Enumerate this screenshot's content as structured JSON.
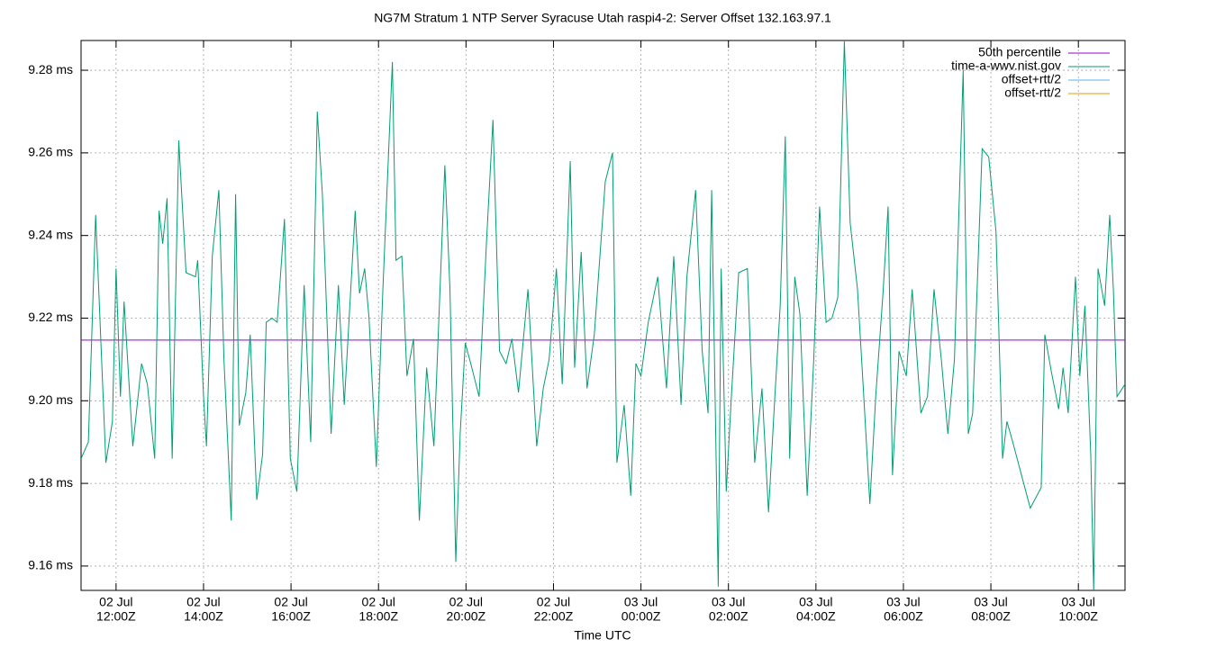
{
  "chart_data": {
    "type": "line",
    "title": "NG7M Stratum 1 NTP Server Syracuse Utah raspi4-2: Server Offset 132.163.97.1",
    "x_label": "Time UTC",
    "xlim": [
      "02 Jul 11:12Z",
      "03 Jul 11:04Z"
    ],
    "xticks": [
      {
        "value": "02 Jul 12:00Z",
        "label": [
          "02 Jul",
          "12:00Z"
        ]
      },
      {
        "value": "02 Jul 14:00Z",
        "label": [
          "02 Jul",
          "14:00Z"
        ]
      },
      {
        "value": "02 Jul 16:00Z",
        "label": [
          "02 Jul",
          "16:00Z"
        ]
      },
      {
        "value": "02 Jul 18:00Z",
        "label": [
          "02 Jul",
          "18:00Z"
        ]
      },
      {
        "value": "02 Jul 20:00Z",
        "label": [
          "02 Jul",
          "20:00Z"
        ]
      },
      {
        "value": "02 Jul 22:00Z",
        "label": [
          "02 Jul",
          "22:00Z"
        ]
      },
      {
        "value": "03 Jul 00:00Z",
        "label": [
          "03 Jul",
          "00:00Z"
        ]
      },
      {
        "value": "03 Jul 02:00Z",
        "label": [
          "03 Jul",
          "02:00Z"
        ]
      },
      {
        "value": "03 Jul 04:00Z",
        "label": [
          "03 Jul",
          "04:00Z"
        ]
      },
      {
        "value": "03 Jul 06:00Z",
        "label": [
          "03 Jul",
          "06:00Z"
        ]
      },
      {
        "value": "03 Jul 08:00Z",
        "label": [
          "03 Jul",
          "08:00Z"
        ]
      },
      {
        "value": "03 Jul 10:00Z",
        "label": [
          "03 Jul",
          "10:00Z"
        ]
      }
    ],
    "ylim": [
      9.1541,
      9.2872
    ],
    "yticks": [
      {
        "value": 9.16,
        "label": "9.16 ms"
      },
      {
        "value": 9.18,
        "label": "9.18 ms"
      },
      {
        "value": 9.2,
        "label": "9.20 ms"
      },
      {
        "value": 9.22,
        "label": "9.22 ms"
      },
      {
        "value": 9.24,
        "label": "9.24 ms"
      },
      {
        "value": 9.26,
        "label": "9.26 ms"
      },
      {
        "value": 9.28,
        "label": "9.28 ms"
      }
    ],
    "grid": true,
    "legend": "top-right",
    "x": [
      "02 Jul 11:12Z",
      "02 Jul 11:22Z",
      "02 Jul 11:32Z",
      "02 Jul 11:46Z",
      "02 Jul 11:55Z",
      "02 Jul 12:00Z",
      "02 Jul 12:06Z",
      "02 Jul 12:11Z",
      "02 Jul 12:23Z",
      "02 Jul 12:35Z",
      "02 Jul 12:43Z",
      "02 Jul 12:53Z",
      "02 Jul 12:59Z",
      "02 Jul 13:04Z",
      "02 Jul 13:10Z",
      "02 Jul 13:17Z",
      "02 Jul 13:26Z",
      "02 Jul 13:36Z",
      "02 Jul 13:49Z",
      "02 Jul 13:52Z",
      "02 Jul 14:00Z",
      "02 Jul 14:04Z",
      "02 Jul 14:12Z",
      "02 Jul 14:21Z",
      "02 Jul 14:28Z",
      "02 Jul 14:38Z",
      "02 Jul 14:44Z",
      "02 Jul 14:49Z",
      "02 Jul 14:58Z",
      "02 Jul 15:04Z",
      "02 Jul 15:13Z",
      "02 Jul 15:21Z",
      "02 Jul 15:26Z",
      "02 Jul 15:34Z",
      "02 Jul 15:41Z",
      "02 Jul 15:51Z",
      "02 Jul 15:59Z",
      "02 Jul 16:08Z",
      "02 Jul 16:18Z",
      "02 Jul 16:27Z",
      "02 Jul 16:36Z",
      "02 Jul 16:43Z",
      "02 Jul 16:55Z",
      "02 Jul 17:05Z",
      "02 Jul 17:13Z",
      "02 Jul 17:28Z",
      "02 Jul 17:34Z",
      "02 Jul 17:41Z",
      "02 Jul 17:47Z",
      "02 Jul 17:57Z",
      "02 Jul 18:06Z",
      "02 Jul 18:19Z",
      "02 Jul 18:24Z",
      "02 Jul 18:32Z",
      "02 Jul 18:39Z",
      "02 Jul 18:48Z",
      "02 Jul 18:56Z",
      "02 Jul 19:06Z",
      "02 Jul 19:16Z",
      "02 Jul 19:31Z",
      "02 Jul 19:38Z",
      "02 Jul 19:46Z",
      "02 Jul 19:52Z",
      "02 Jul 19:59Z",
      "02 Jul 20:08Z",
      "02 Jul 20:18Z",
      "02 Jul 20:28Z",
      "02 Jul 20:37Z",
      "02 Jul 20:46Z",
      "02 Jul 20:55Z",
      "02 Jul 21:03Z",
      "02 Jul 21:12Z",
      "02 Jul 21:25Z",
      "02 Jul 21:37Z",
      "02 Jul 21:46Z",
      "02 Jul 21:54Z",
      "02 Jul 22:04Z",
      "02 Jul 22:12Z",
      "02 Jul 22:23Z",
      "02 Jul 22:29Z",
      "02 Jul 22:38Z",
      "02 Jul 22:46Z",
      "02 Jul 22:56Z",
      "02 Jul 23:11Z",
      "02 Jul 23:21Z",
      "02 Jul 23:27Z",
      "02 Jul 23:37Z",
      "02 Jul 23:46Z",
      "02 Jul 23:53Z",
      "03 Jul 00:00Z",
      "03 Jul 00:10Z",
      "03 Jul 00:23Z",
      "03 Jul 00:35Z",
      "03 Jul 00:45Z",
      "03 Jul 00:55Z",
      "03 Jul 01:03Z",
      "03 Jul 01:15Z",
      "03 Jul 01:24Z",
      "03 Jul 01:32Z",
      "03 Jul 01:37Z",
      "03 Jul 01:46Z",
      "03 Jul 01:50Z",
      "03 Jul 01:57Z",
      "03 Jul 02:04Z",
      "03 Jul 02:14Z",
      "03 Jul 02:26Z",
      "03 Jul 02:36Z",
      "03 Jul 02:46Z",
      "03 Jul 02:55Z",
      "03 Jul 03:03Z",
      "03 Jul 03:11Z",
      "03 Jul 03:18Z",
      "03 Jul 03:24Z",
      "03 Jul 03:31Z",
      "03 Jul 03:38Z",
      "03 Jul 03:48Z",
      "03 Jul 03:57Z",
      "03 Jul 04:05Z",
      "03 Jul 04:14Z",
      "03 Jul 04:22Z",
      "03 Jul 04:30Z",
      "03 Jul 04:39Z",
      "03 Jul 04:47Z",
      "03 Jul 04:57Z",
      "03 Jul 05:05Z",
      "03 Jul 05:14Z",
      "03 Jul 05:22Z",
      "03 Jul 05:32Z",
      "03 Jul 05:39Z",
      "03 Jul 05:45Z",
      "03 Jul 05:54Z",
      "03 Jul 06:04Z",
      "03 Jul 06:12Z",
      "03 Jul 06:24Z",
      "03 Jul 06:33Z",
      "03 Jul 06:42Z",
      "03 Jul 06:52Z",
      "03 Jul 07:01Z",
      "03 Jul 07:10Z",
      "03 Jul 07:22Z",
      "03 Jul 07:29Z",
      "03 Jul 07:35Z",
      "03 Jul 07:48Z",
      "03 Jul 07:57Z",
      "03 Jul 08:07Z",
      "03 Jul 08:16Z",
      "03 Jul 08:22Z",
      "03 Jul 08:30Z",
      "03 Jul 08:54Z",
      "03 Jul 09:09Z",
      "03 Jul 09:14Z",
      "03 Jul 09:23Z",
      "03 Jul 09:33Z",
      "03 Jul 09:39Z",
      "03 Jul 09:46Z",
      "03 Jul 09:56Z",
      "03 Jul 10:02Z",
      "03 Jul 10:09Z",
      "03 Jul 10:17Z",
      "03 Jul 10:21Z",
      "03 Jul 10:27Z",
      "03 Jul 10:36Z",
      "03 Jul 10:43Z",
      "03 Jul 10:48Z",
      "03 Jul 10:53Z",
      "03 Jul 11:04Z"
    ],
    "series": [
      {
        "name": "50th percentile",
        "color": "#9400d3",
        "value": 9.2147
      },
      {
        "name": "time-a-wwv.nist.gov",
        "color": "#009e73",
        "values": [
          9.186,
          9.19,
          9.245,
          9.185,
          9.195,
          9.232,
          9.201,
          9.224,
          9.189,
          9.209,
          9.204,
          9.186,
          9.246,
          9.238,
          9.249,
          9.186,
          9.263,
          9.231,
          9.23,
          9.234,
          9.201,
          9.189,
          9.235,
          9.251,
          9.21,
          9.171,
          9.25,
          9.194,
          9.202,
          9.216,
          9.176,
          9.187,
          9.219,
          9.22,
          9.219,
          9.244,
          9.186,
          9.178,
          9.228,
          9.19,
          9.27,
          9.25,
          9.192,
          9.228,
          9.199,
          9.246,
          9.226,
          9.232,
          9.22,
          9.184,
          9.227,
          9.282,
          9.234,
          9.235,
          9.206,
          9.215,
          9.171,
          9.208,
          9.189,
          9.257,
          9.227,
          9.161,
          9.192,
          9.214,
          9.208,
          9.201,
          9.238,
          9.268,
          9.212,
          9.209,
          9.215,
          9.202,
          9.227,
          9.189,
          9.203,
          9.21,
          9.232,
          9.204,
          9.258,
          9.208,
          9.236,
          9.203,
          9.216,
          9.253,
          9.26,
          9.185,
          9.199,
          9.177,
          9.209,
          9.206,
          9.219,
          9.23,
          9.203,
          9.235,
          9.199,
          9.23,
          9.251,
          9.212,
          9.197,
          9.251,
          9.155,
          9.232,
          9.178,
          9.201,
          9.231,
          9.232,
          9.185,
          9.203,
          9.173,
          9.199,
          9.223,
          9.264,
          9.186,
          9.23,
          9.221,
          9.177,
          9.21,
          9.247,
          9.219,
          9.22,
          9.225,
          9.287,
          9.243,
          9.227,
          9.203,
          9.175,
          9.201,
          9.226,
          9.247,
          9.182,
          9.212,
          9.206,
          9.227,
          9.197,
          9.201,
          9.227,
          9.21,
          9.192,
          9.21,
          9.28,
          9.192,
          9.197,
          9.261,
          9.259,
          9.241,
          9.186,
          9.195,
          9.19,
          9.174,
          9.179,
          9.216,
          9.207,
          9.198,
          9.208,
          9.197,
          9.23,
          9.206,
          9.223,
          9.187,
          9.154,
          9.232,
          9.223,
          9.245,
          9.227,
          9.201,
          9.204
        ]
      },
      {
        "name": "offset+rtt/2",
        "color": "#56b4e9"
      },
      {
        "name": "offset-rtt/2",
        "color": "#e69f00"
      }
    ]
  }
}
